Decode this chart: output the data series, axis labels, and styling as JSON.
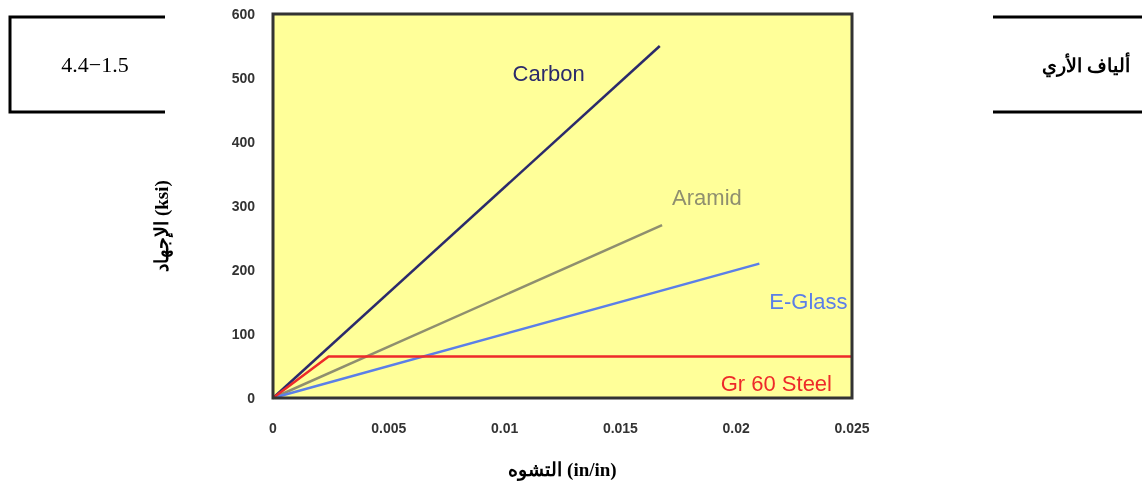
{
  "chart_data": {
    "type": "line",
    "xlabel": "التشوه (in/in)",
    "ylabel": "الإجهاد (ksi)",
    "xlim": [
      0,
      0.025
    ],
    "ylim": [
      0,
      600
    ],
    "xticks": [
      0,
      0.005,
      0.01,
      0.015,
      0.02,
      0.025
    ],
    "yticks": [
      0,
      100,
      200,
      300,
      400,
      500,
      600
    ],
    "grid": false,
    "marker": "none",
    "line_style": "solid",
    "series": [
      {
        "name": "Carbon",
        "color": "#2b2a6b",
        "x": [
          0,
          0.0167
        ],
        "values": [
          0,
          550
        ]
      },
      {
        "name": "Aramid",
        "color": "#8f8f6f",
        "x": [
          0,
          0.0168
        ],
        "values": [
          0,
          270
        ]
      },
      {
        "name": "E-Glass",
        "color": "#5b7fe8",
        "x": [
          0,
          0.021
        ],
        "values": [
          0,
          210
        ]
      },
      {
        "name": "Gr 60 Steel",
        "color": "#ee2a2a",
        "x": [
          0,
          0.0024,
          0.025
        ],
        "values": [
          0,
          65,
          65
        ]
      }
    ],
    "annotations": [
      "4.4−1.5",
      "ألياف الأري"
    ]
  }
}
